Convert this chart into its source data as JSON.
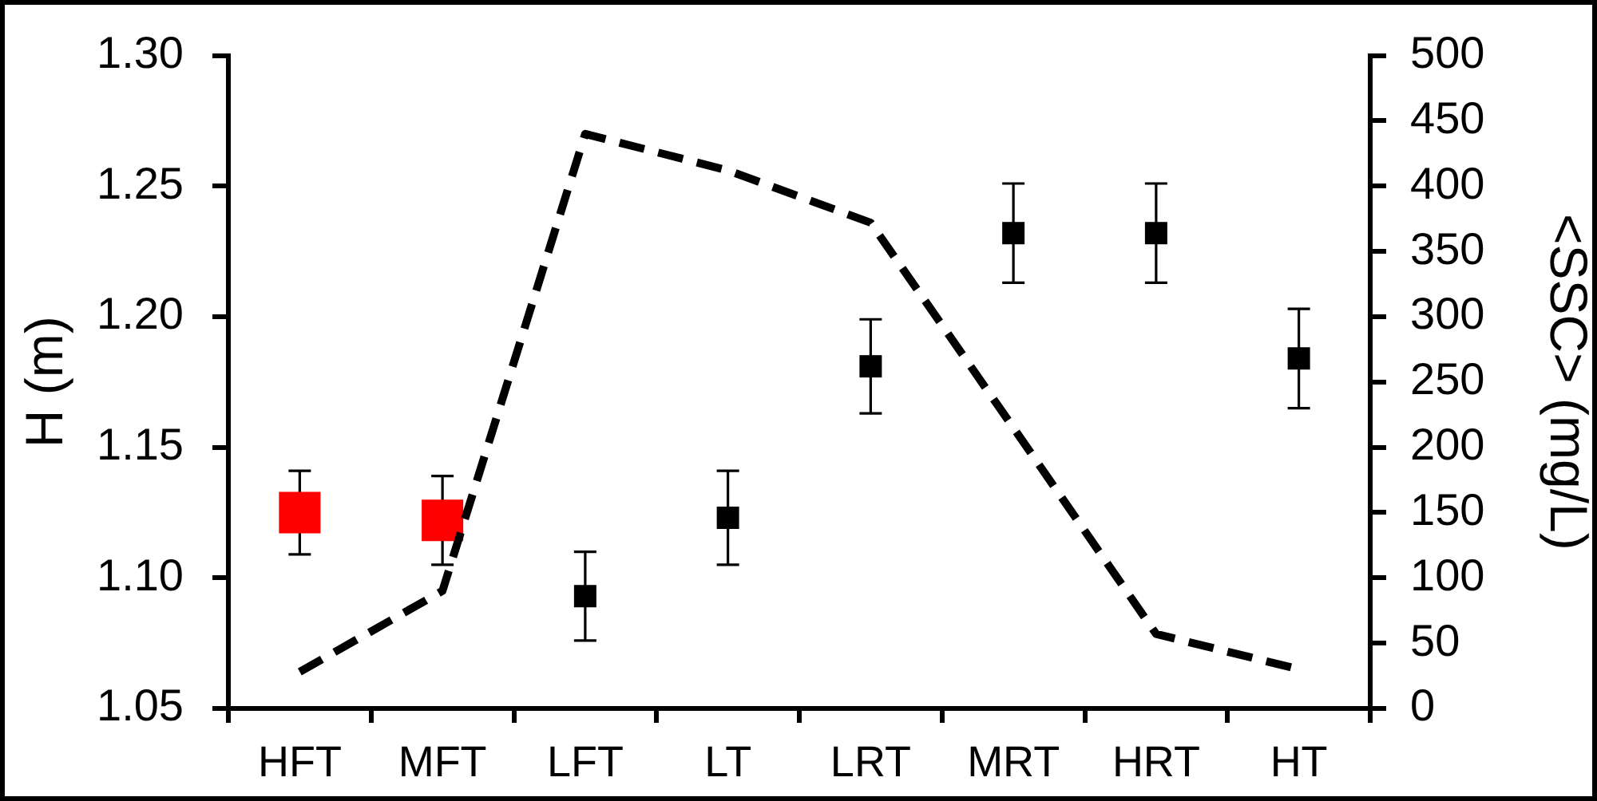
{
  "chart_data": {
    "type": "scatter",
    "categories": [
      "HFT",
      "MFT",
      "LFT",
      "LT",
      "LRT",
      "MRT",
      "HRT",
      "HT"
    ],
    "ylabel": "H (m)",
    "y2label": "<SSC> (mg/L)",
    "ylim": [
      1.05,
      1.3
    ],
    "yticks": [
      1.05,
      {
        "value": 1.1,
        "label": "1.10"
      },
      1.15,
      {
        "value": 1.2,
        "label": "1.20"
      },
      1.25,
      {
        "value": 1.3,
        "label": "1.30"
      }
    ],
    "y2lim": [
      0,
      500
    ],
    "y2ticks": [
      0,
      50,
      100,
      150,
      200,
      250,
      300,
      350,
      400,
      450,
      500
    ],
    "series": [
      {
        "color": "#ff0000",
        "marker": "square",
        "values": [
          1.125,
          1.122,
          null,
          null,
          null,
          null,
          null,
          null
        ],
        "errors": [
          0.016,
          0.017,
          null,
          null,
          null,
          null,
          null,
          null
        ]
      },
      {
        "color": "#000000",
        "marker": "square",
        "values": [
          null,
          null,
          1.093,
          1.123,
          1.181,
          1.232,
          1.232,
          1.184
        ],
        "errors": [
          null,
          null,
          0.017,
          0.018,
          0.018,
          0.019,
          0.019,
          0.019
        ]
      },
      {
        "type": "line",
        "axis": "y2",
        "color": "#000000",
        "line_style": "dashed",
        "values": [
          28,
          90,
          440,
          412,
          372,
          215,
          57,
          30
        ]
      }
    ]
  }
}
